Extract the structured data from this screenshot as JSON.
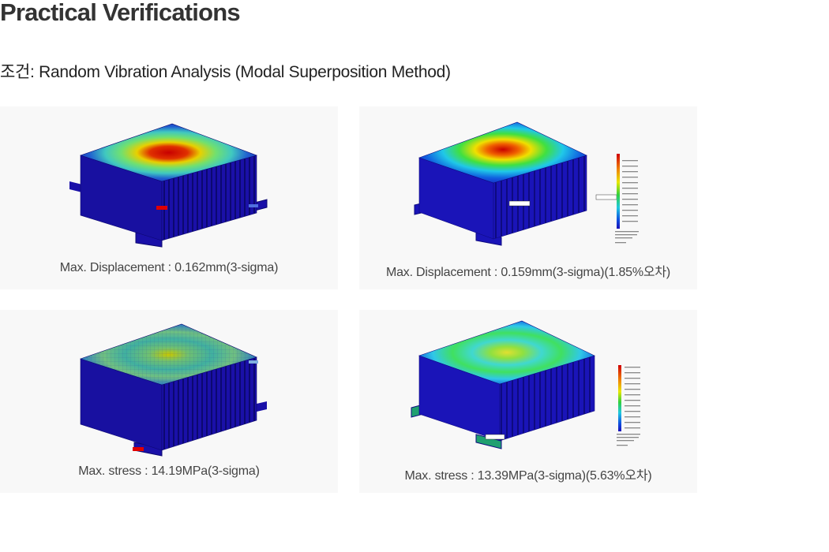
{
  "page": {
    "title": "Practical Verifications",
    "condition": "조건: Random Vibration Analysis (Modal Superposition Method)"
  },
  "colors": {
    "mesh_blue": "#1a0fb0",
    "contour_red": "#d90000",
    "contour_yellow": "#e8e800",
    "contour_green": "#2fd35a",
    "contour_cyan": "#20c8e0",
    "card_background": "#f8f8f8"
  },
  "figures": [
    {
      "caption": "Max. Displacement : 0.162mm(3-sigma)",
      "result": "displacement",
      "solver": "reference",
      "has_legend": false
    },
    {
      "caption": "Max. Displacement : 0.159mm(3-sigma)(1.85%오차)",
      "result": "displacement",
      "solver": "comparison",
      "has_legend": true
    },
    {
      "caption": "Max. stress : 14.19MPa(3-sigma)",
      "result": "stress",
      "solver": "reference",
      "has_legend": false
    },
    {
      "caption": "Max. stress : 13.39MPa(3-sigma)(5.63%오차)",
      "result": "stress",
      "solver": "comparison",
      "has_legend": true
    }
  ]
}
